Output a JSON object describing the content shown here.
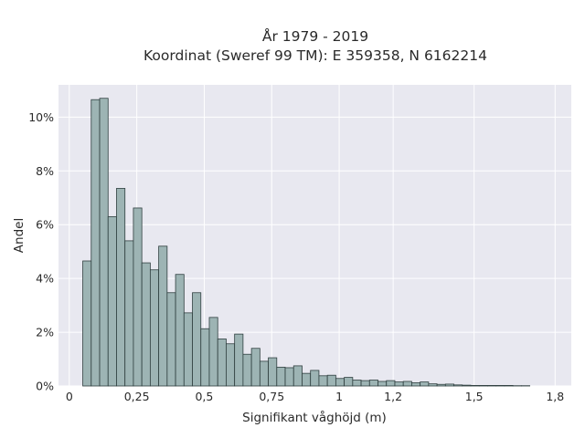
{
  "chart_data": {
    "type": "bar",
    "title_line1": "År 1979 - 2019",
    "title_line2": "Koordinat (Sweref 99 TM): E 359358, N 6162214",
    "xlabel": "Signifikant våghöjd (m)",
    "ylabel": "Andel",
    "x_ticks": [
      0,
      0.25,
      0.5,
      0.75,
      1,
      1.2,
      1.5,
      1.8
    ],
    "x_tick_labels": [
      "0",
      "0,25",
      "0,5",
      "0,75",
      "1",
      "1,2",
      "1,5",
      "1,8"
    ],
    "y_ticks": [
      0,
      2,
      4,
      6,
      8,
      10
    ],
    "y_tick_labels": [
      "0%",
      "2%",
      "4%",
      "6%",
      "8%",
      "10%"
    ],
    "xlim": [
      -0.04,
      1.86
    ],
    "ylim": [
      0,
      11.2
    ],
    "bin_width": 0.03125,
    "bin_start": 0.05,
    "values": [
      4.65,
      10.65,
      10.7,
      6.3,
      7.35,
      5.4,
      6.62,
      4.58,
      4.32,
      5.2,
      3.47,
      4.15,
      2.72,
      3.47,
      2.13,
      2.55,
      1.75,
      1.57,
      1.93,
      1.18,
      1.4,
      0.92,
      1.05,
      0.7,
      0.68,
      0.75,
      0.47,
      0.58,
      0.38,
      0.4,
      0.28,
      0.32,
      0.22,
      0.2,
      0.22,
      0.17,
      0.2,
      0.15,
      0.17,
      0.12,
      0.15,
      0.08,
      0.06,
      0.07,
      0.04,
      0.03,
      0.02,
      0.02,
      0.02,
      0.02,
      0.02,
      0.01,
      0.01
    ],
    "grid": true,
    "colors": {
      "bar_fill": "#9db4b4",
      "bar_stroke": "#2f3f3f",
      "plot_background": "#e8e8f0",
      "grid": "#ffffff"
    }
  }
}
